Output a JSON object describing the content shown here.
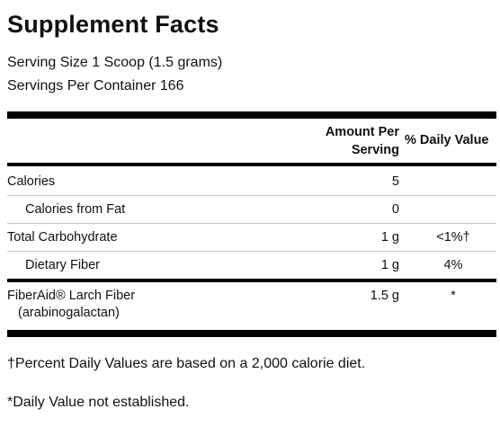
{
  "title": "Supplement Facts",
  "serving_size": "Serving Size 1 Scoop (1.5 grams)",
  "servings_per_container": "Servings Per Container 166",
  "header": {
    "amount_line1": "Amount Per",
    "amount_line2": "Serving",
    "daily_value": "% Daily Value"
  },
  "rows": [
    {
      "name": "Calories",
      "amount": "5",
      "dv": ""
    },
    {
      "name": "Calories from Fat",
      "amount": "0",
      "dv": ""
    },
    {
      "name": "Total Carbohydrate",
      "amount": "1 g",
      "dv": "<1%†"
    },
    {
      "name": "Dietary Fiber",
      "amount": "1 g",
      "dv": "4%"
    },
    {
      "name": "FiberAid® Larch Fiber",
      "sub": "(arabinogalactan)",
      "amount": "1.5 g",
      "dv": "*"
    }
  ],
  "footnotes": [
    "†Percent Daily Values are based on a 2,000 calorie diet.",
    "*Daily Value not established."
  ]
}
